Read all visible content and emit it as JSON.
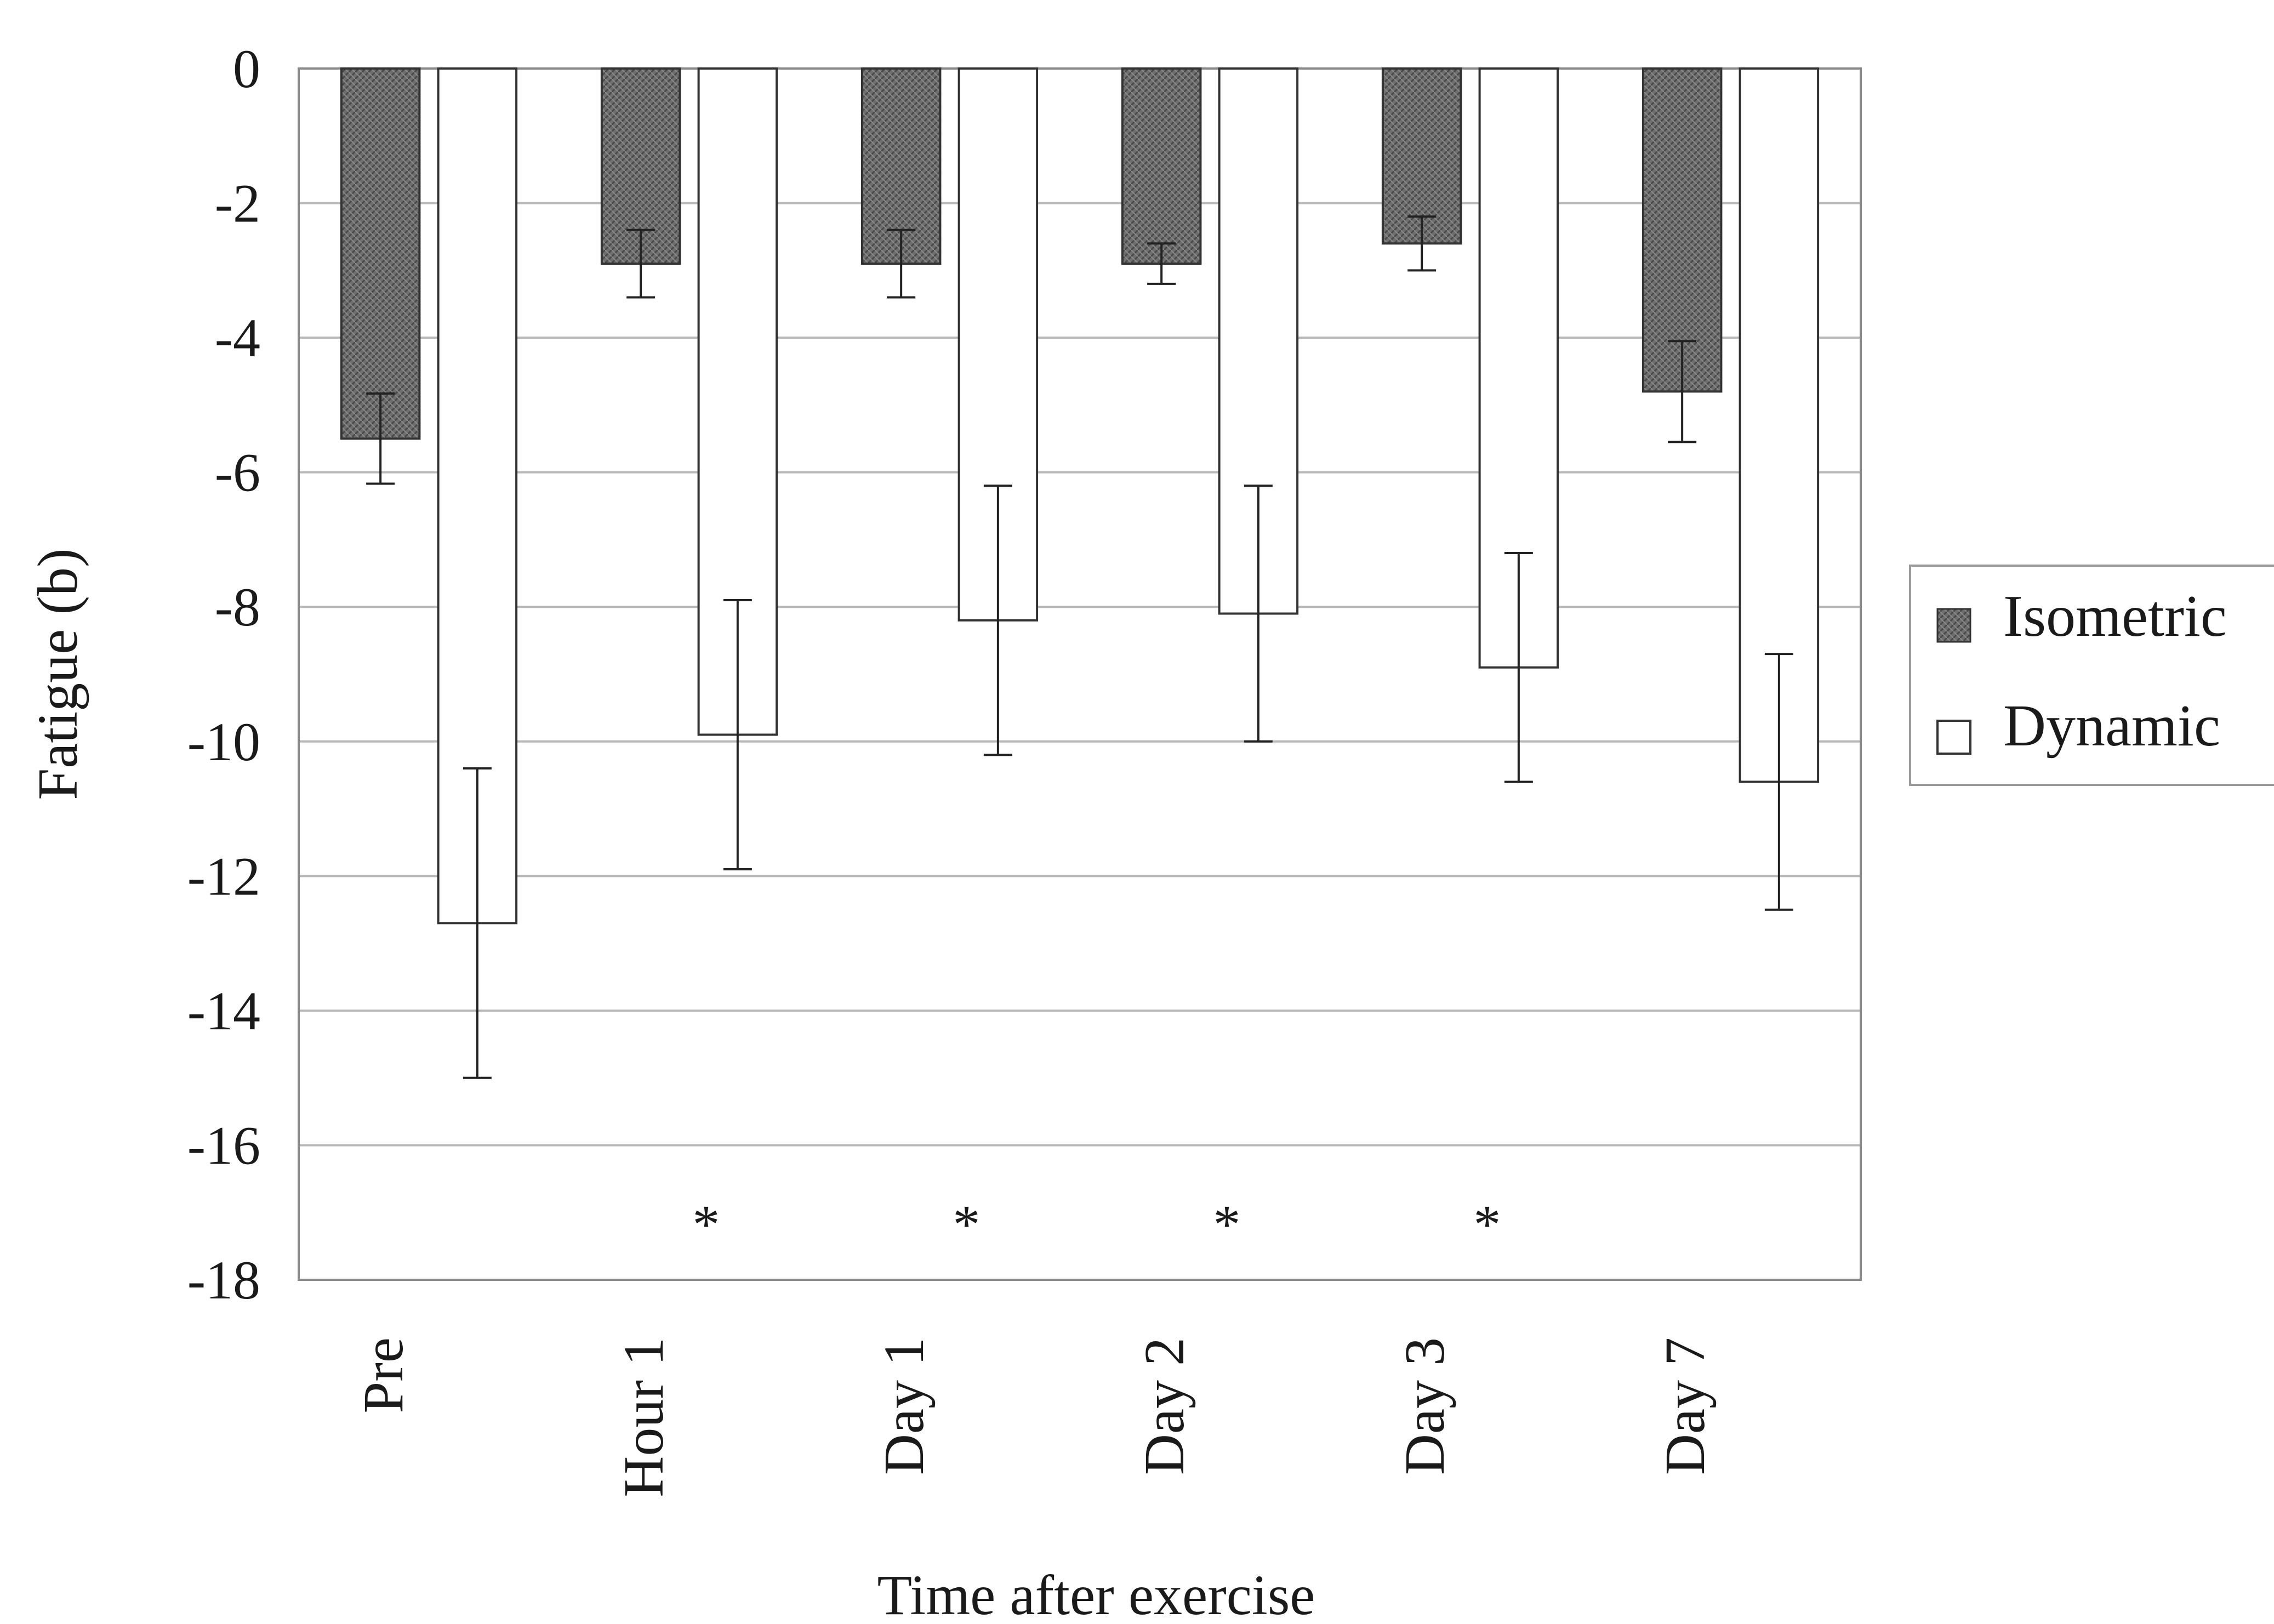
{
  "chart_data": {
    "type": "bar",
    "title": "",
    "xlabel": "Time after exercise",
    "ylabel": "Fatigue (b)",
    "ylim": [
      -18,
      0
    ],
    "yticks": [
      0,
      -2,
      -4,
      -6,
      -8,
      -10,
      -12,
      -14,
      -16,
      -18
    ],
    "grid": true,
    "legend_position": "right",
    "categories": [
      "Pre",
      "Hour 1",
      "Day 1",
      "Day 2",
      "Day 3",
      "Day 7"
    ],
    "series": [
      {
        "name": "Isometric",
        "values": [
          -5.5,
          -2.9,
          -2.9,
          -2.9,
          -2.6,
          -4.8
        ],
        "error": [
          0.67,
          0.5,
          0.5,
          0.3,
          0.4,
          0.75
        ],
        "color": "#6e6e6e"
      },
      {
        "name": "Dynamic",
        "values": [
          -12.7,
          -9.9,
          -8.2,
          -8.1,
          -8.9,
          -10.6
        ],
        "error": [
          2.3,
          2.0,
          2.0,
          1.9,
          1.7,
          1.9
        ],
        "color": "#ffffff"
      }
    ],
    "significance": {
      "symbol": "*",
      "y": -17,
      "categories": [
        "Hour 1",
        "Day 1",
        "Day 2",
        "Day 3"
      ]
    }
  }
}
